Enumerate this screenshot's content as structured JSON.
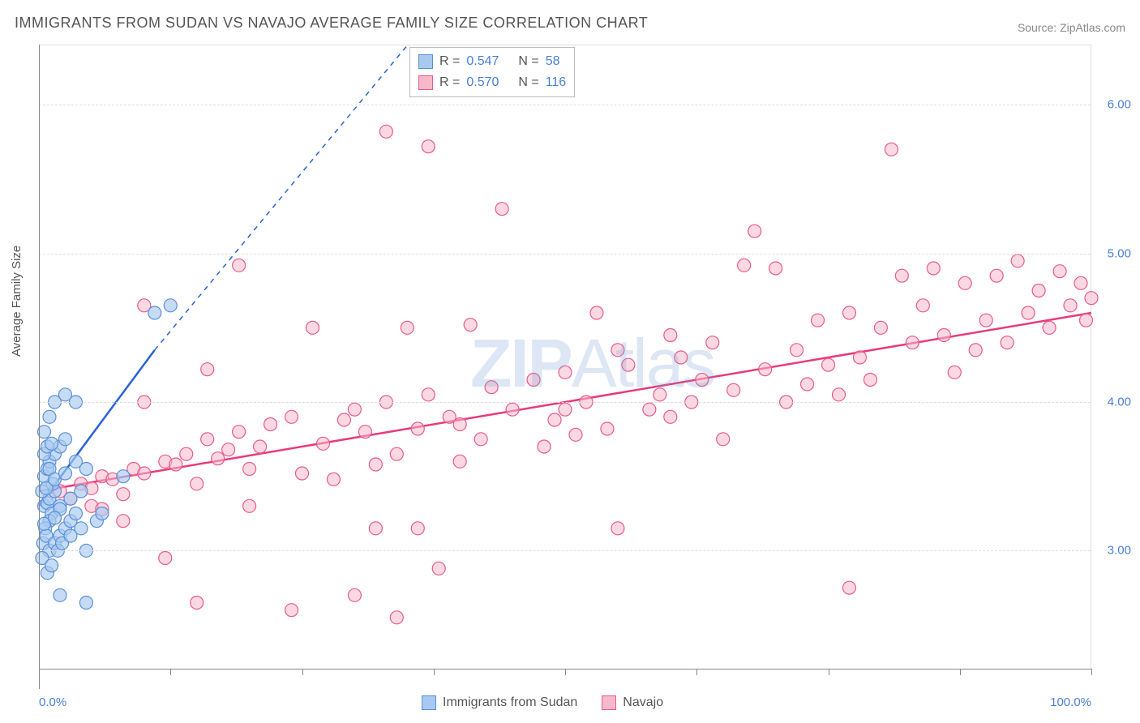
{
  "title": "IMMIGRANTS FROM SUDAN VS NAVAJO AVERAGE FAMILY SIZE CORRELATION CHART",
  "source": "Source: ZipAtlas.com",
  "watermark": "ZIPAtlas",
  "y_axis_label": "Average Family Size",
  "chart": {
    "type": "scatter",
    "background_color": "#ffffff",
    "grid_color": "#dddddd",
    "xlim": [
      0,
      100
    ],
    "ylim": [
      2.2,
      6.4
    ],
    "x_tick_positions": [
      0,
      12.5,
      25,
      37.5,
      50,
      62.5,
      75,
      87.5,
      100
    ],
    "x_tick_labels": {
      "0": "0.0%",
      "100": "100.0%"
    },
    "y_ticks": [
      3.0,
      4.0,
      5.0,
      6.0
    ],
    "y_tick_labels": [
      "3.00",
      "4.00",
      "5.00",
      "6.00"
    ],
    "series": [
      {
        "name": "Immigrants from Sudan",
        "marker_fill": "#a8c9f0",
        "marker_stroke": "#5a8fd8",
        "marker_radius": 8,
        "marker_opacity": 0.65,
        "R": "0.547",
        "N": "58",
        "trend": {
          "solid": [
            [
              0,
              3.3
            ],
            [
              11,
              4.35
            ]
          ],
          "dashed": [
            [
              11,
              4.35
            ],
            [
              35,
              6.4
            ]
          ],
          "color": "#2962d8",
          "width": 2.5
        },
        "points": [
          [
            0.5,
            3.3
          ],
          [
            0.8,
            3.32
          ],
          [
            1.0,
            3.35
          ],
          [
            1.2,
            3.25
          ],
          [
            1.5,
            3.4
          ],
          [
            1.0,
            3.2
          ],
          [
            0.6,
            3.15
          ],
          [
            1.3,
            3.45
          ],
          [
            0.5,
            3.5
          ],
          [
            0.8,
            3.55
          ],
          [
            1.0,
            3.6
          ],
          [
            1.5,
            3.65
          ],
          [
            2.0,
            3.7
          ],
          [
            2.5,
            3.75
          ],
          [
            0.4,
            3.05
          ],
          [
            0.7,
            3.1
          ],
          [
            1.0,
            3.0
          ],
          [
            1.5,
            3.05
          ],
          [
            2.0,
            3.1
          ],
          [
            2.5,
            3.15
          ],
          [
            3.0,
            3.2
          ],
          [
            3.5,
            3.25
          ],
          [
            4.0,
            3.15
          ],
          [
            5.5,
            3.2
          ],
          [
            6.0,
            3.25
          ],
          [
            2.0,
            3.3
          ],
          [
            3.0,
            3.35
          ],
          [
            4.0,
            3.4
          ],
          [
            0.5,
            3.8
          ],
          [
            1.0,
            3.9
          ],
          [
            1.5,
            4.0
          ],
          [
            2.5,
            4.05
          ],
          [
            3.5,
            4.0
          ],
          [
            0.3,
            2.95
          ],
          [
            0.8,
            2.85
          ],
          [
            1.2,
            2.9
          ],
          [
            1.8,
            3.0
          ],
          [
            2.2,
            3.05
          ],
          [
            3.0,
            3.1
          ],
          [
            4.5,
            3.0
          ],
          [
            2.0,
            2.7
          ],
          [
            4.5,
            2.65
          ],
          [
            0.5,
            3.18
          ],
          [
            0.3,
            3.4
          ],
          [
            0.7,
            3.42
          ],
          [
            11,
            4.6
          ],
          [
            12.5,
            4.65
          ],
          [
            8.0,
            3.5
          ],
          [
            1.0,
            3.55
          ],
          [
            1.5,
            3.48
          ],
          [
            2.5,
            3.52
          ],
          [
            3.5,
            3.6
          ],
          [
            4.5,
            3.55
          ],
          [
            0.5,
            3.65
          ],
          [
            0.8,
            3.7
          ],
          [
            1.2,
            3.72
          ],
          [
            2.0,
            3.28
          ],
          [
            1.5,
            3.22
          ]
        ]
      },
      {
        "name": "Navajo",
        "marker_fill": "#f7b8ca",
        "marker_stroke": "#e85a8a",
        "marker_radius": 8,
        "marker_opacity": 0.55,
        "R": "0.570",
        "N": "116",
        "trend": {
          "solid": [
            [
              0,
              3.4
            ],
            [
              100,
              4.6
            ]
          ],
          "color": "#e83a7a",
          "width": 2.5
        },
        "points": [
          [
            2,
            3.4
          ],
          [
            3,
            3.35
          ],
          [
            4,
            3.45
          ],
          [
            5,
            3.42
          ],
          [
            6,
            3.5
          ],
          [
            7,
            3.48
          ],
          [
            8,
            3.38
          ],
          [
            9,
            3.55
          ],
          [
            10,
            3.52
          ],
          [
            12,
            3.6
          ],
          [
            13,
            3.58
          ],
          [
            14,
            3.65
          ],
          [
            15,
            3.45
          ],
          [
            16,
            3.75
          ],
          [
            17,
            3.62
          ],
          [
            18,
            3.68
          ],
          [
            19,
            3.8
          ],
          [
            20,
            3.55
          ],
          [
            21,
            3.7
          ],
          [
            22,
            3.85
          ],
          [
            19,
            4.92
          ],
          [
            10,
            4.65
          ],
          [
            16,
            4.22
          ],
          [
            10,
            4.0
          ],
          [
            24,
            3.9
          ],
          [
            25,
            3.52
          ],
          [
            27,
            3.72
          ],
          [
            28,
            3.48
          ],
          [
            29,
            3.88
          ],
          [
            30,
            3.95
          ],
          [
            31,
            3.8
          ],
          [
            32,
            3.58
          ],
          [
            33,
            4.0
          ],
          [
            34,
            3.65
          ],
          [
            35,
            4.5
          ],
          [
            36,
            3.82
          ],
          [
            37,
            4.05
          ],
          [
            39,
            3.9
          ],
          [
            40,
            3.6
          ],
          [
            40,
            3.85
          ],
          [
            41,
            4.52
          ],
          [
            42,
            3.75
          ],
          [
            43,
            4.1
          ],
          [
            26,
            4.5
          ],
          [
            33,
            5.82
          ],
          [
            37,
            5.72
          ],
          [
            44,
            5.3
          ],
          [
            45,
            3.95
          ],
          [
            47,
            4.15
          ],
          [
            48,
            3.7
          ],
          [
            49,
            3.88
          ],
          [
            50,
            4.2
          ],
          [
            51,
            3.78
          ],
          [
            52,
            4.0
          ],
          [
            53,
            4.6
          ],
          [
            54,
            3.82
          ],
          [
            55,
            3.15
          ],
          [
            56,
            4.25
          ],
          [
            58,
            3.95
          ],
          [
            59,
            4.05
          ],
          [
            60,
            3.9
          ],
          [
            61,
            4.3
          ],
          [
            62,
            4.0
          ],
          [
            63,
            4.15
          ],
          [
            64,
            4.4
          ],
          [
            65,
            3.75
          ],
          [
            66,
            4.08
          ],
          [
            67,
            4.92
          ],
          [
            68,
            5.15
          ],
          [
            69,
            4.22
          ],
          [
            70,
            4.9
          ],
          [
            71,
            4.0
          ],
          [
            72,
            4.35
          ],
          [
            73,
            4.12
          ],
          [
            74,
            4.55
          ],
          [
            75,
            4.25
          ],
          [
            76,
            4.05
          ],
          [
            77,
            4.6
          ],
          [
            78,
            4.3
          ],
          [
            79,
            4.15
          ],
          [
            80,
            4.5
          ],
          [
            81,
            5.7
          ],
          [
            82,
            4.85
          ],
          [
            83,
            4.4
          ],
          [
            84,
            4.65
          ],
          [
            85,
            4.9
          ],
          [
            86,
            4.45
          ],
          [
            87,
            4.2
          ],
          [
            88,
            4.8
          ],
          [
            89,
            4.35
          ],
          [
            90,
            4.55
          ],
          [
            91,
            4.85
          ],
          [
            92,
            4.4
          ],
          [
            93,
            4.95
          ],
          [
            94,
            4.6
          ],
          [
            95,
            4.75
          ],
          [
            96,
            4.5
          ],
          [
            97,
            4.88
          ],
          [
            98,
            4.65
          ],
          [
            99,
            4.8
          ],
          [
            99.5,
            4.55
          ],
          [
            100,
            4.7
          ],
          [
            15,
            2.65
          ],
          [
            24,
            2.6
          ],
          [
            30,
            2.7
          ],
          [
            34,
            2.55
          ],
          [
            8,
            3.2
          ],
          [
            12,
            2.95
          ],
          [
            38,
            2.88
          ],
          [
            32,
            3.15
          ],
          [
            77,
            2.75
          ],
          [
            50,
            3.95
          ],
          [
            60,
            4.45
          ],
          [
            36,
            3.15
          ],
          [
            20,
            3.3
          ],
          [
            5,
            3.3
          ],
          [
            6,
            3.28
          ],
          [
            55,
            4.35
          ]
        ]
      }
    ]
  },
  "legend_top_labels": {
    "R": "R =",
    "N": "N ="
  },
  "legend_bottom": [
    {
      "label": "Immigrants from Sudan",
      "fill": "#a8c9f0",
      "stroke": "#5a8fd8"
    },
    {
      "label": "Navajo",
      "fill": "#f7b8ca",
      "stroke": "#e85a8a"
    }
  ]
}
